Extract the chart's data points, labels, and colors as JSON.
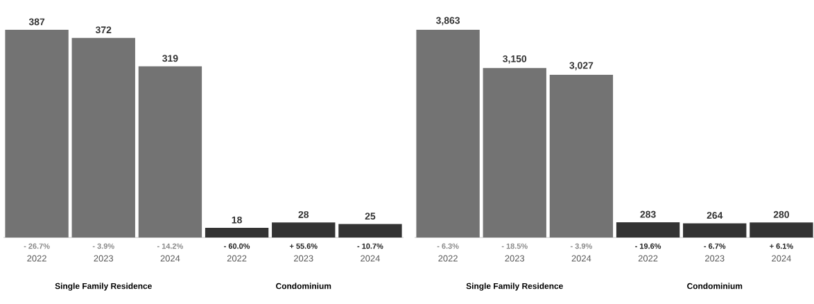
{
  "chart_data": [
    {
      "type": "bar",
      "categories": [
        "2022",
        "2023",
        "2024",
        "2022",
        "2023",
        "2024"
      ],
      "values": [
        387,
        372,
        319,
        18,
        28,
        25
      ],
      "colors": [
        "#737373",
        "#737373",
        "#737373",
        "#333333",
        "#333333",
        "#333333"
      ],
      "value_labels": [
        "387",
        "372",
        "319",
        "18",
        "28",
        "25"
      ],
      "annotations": [
        "- 26.7%",
        "- 3.9%",
        "- 14.2%",
        "- 60.0%",
        "+ 55.6%",
        "- 10.7%",
        "Single Family Residence",
        "Condominium"
      ]
    },
    {
      "type": "bar",
      "categories": [
        "2022",
        "2023",
        "2024",
        "2022",
        "2023",
        "2024"
      ],
      "values": [
        3863,
        3150,
        3027,
        283,
        264,
        280
      ],
      "colors": [
        "#737373",
        "#737373",
        "#737373",
        "#333333",
        "#333333",
        "#333333"
      ],
      "value_labels": [
        "3,863",
        "3,150",
        "3,027",
        "283",
        "264",
        "280"
      ],
      "annotations": [
        "- 6.3%",
        "- 18.5%",
        "- 3.9%",
        "- 19.6%",
        "- 6.7%",
        "+ 6.1%",
        "Single Family Residence",
        "Condominium"
      ]
    }
  ]
}
